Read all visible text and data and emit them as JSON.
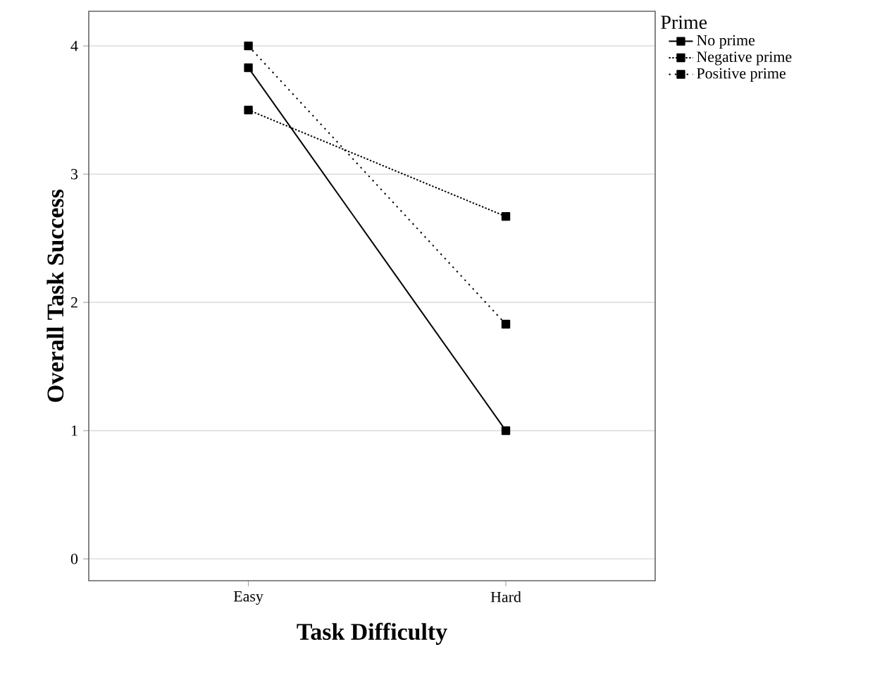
{
  "chart_data": {
    "type": "line",
    "xlabel": "Task Difficulty",
    "ylabel": "Overall Task Success",
    "legend_title": "Prime",
    "categories": [
      "Easy",
      "Hard"
    ],
    "series": [
      {
        "name": "No prime",
        "color": "#000000",
        "line_style": "solid",
        "values": [
          3.83,
          1.0
        ]
      },
      {
        "name": "Negative prime",
        "color": "#000000",
        "line_style": "dotted",
        "values": [
          3.5,
          2.67
        ]
      },
      {
        "name": "Positive prime",
        "color": "#000000",
        "line_style": "dashed",
        "values": [
          4.0,
          1.83
        ]
      }
    ],
    "ylim": [
      -0.17,
      4.27
    ],
    "yticks": [
      0,
      1,
      2,
      3,
      4
    ],
    "grid": "y",
    "legend": "top right",
    "marker": "square"
  }
}
